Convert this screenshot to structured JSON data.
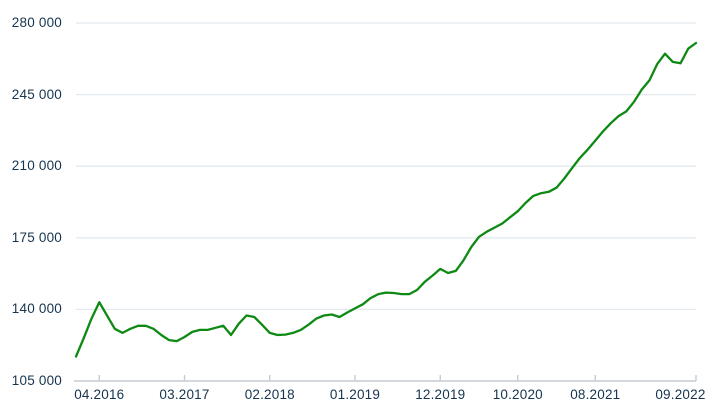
{
  "chart": {
    "background": "#ffffff",
    "has_title": false,
    "has_legend": false
  },
  "colors": {
    "line": "#0e8a14",
    "tick_text": "#16344f",
    "gridline": "#e3eaef",
    "axis_line": "#c3ccd3"
  },
  "chart_data": {
    "type": "line",
    "title": "",
    "xlabel": "",
    "ylabel": "",
    "x_unit": "month",
    "x_start_month": "01.2016",
    "x_end_month": "09.2022",
    "ylim": [
      105000,
      280000
    ],
    "y_ticks": [
      105000,
      140000,
      175000,
      210000,
      245000,
      280000
    ],
    "y_tick_labels": [
      "105 000",
      "140 000",
      "175 000",
      "210 000",
      "245 000",
      "280 000"
    ],
    "x_tick_labels": [
      "04.2016",
      "03.2017",
      "02.2018",
      "01.2019",
      "12.2019",
      "10.2020",
      "08.2021",
      "09.2022"
    ],
    "x_tick_indices": [
      3,
      14,
      25,
      36,
      47,
      57,
      67,
      80
    ],
    "grid": "horizontal-only",
    "legend_position": "none",
    "series": [
      {
        "name": "price-index-line",
        "color": "#0e8a14",
        "months": "monthly from 01.2016 to 09.2022",
        "values": [
          117000,
          126000,
          135500,
          143500,
          137000,
          130500,
          128500,
          130500,
          132000,
          132000,
          130500,
          127500,
          125000,
          124500,
          126500,
          129000,
          130000,
          130000,
          131000,
          132000,
          127500,
          133000,
          137000,
          136300,
          132500,
          128500,
          127500,
          127700,
          128500,
          130000,
          132500,
          135500,
          137000,
          137500,
          136300,
          138500,
          140500,
          142500,
          145500,
          147500,
          148200,
          148000,
          147500,
          147500,
          149500,
          153500,
          156500,
          159800,
          157800,
          158800,
          164000,
          170500,
          175500,
          178000,
          180000,
          182000,
          185000,
          188000,
          192000,
          195500,
          196800,
          197500,
          199500,
          204000,
          209000,
          214000,
          218000,
          222500,
          227000,
          231000,
          234500,
          236800,
          241500,
          247500,
          252000,
          260000,
          265000,
          261000,
          260300,
          267500,
          270200
        ]
      }
    ]
  }
}
